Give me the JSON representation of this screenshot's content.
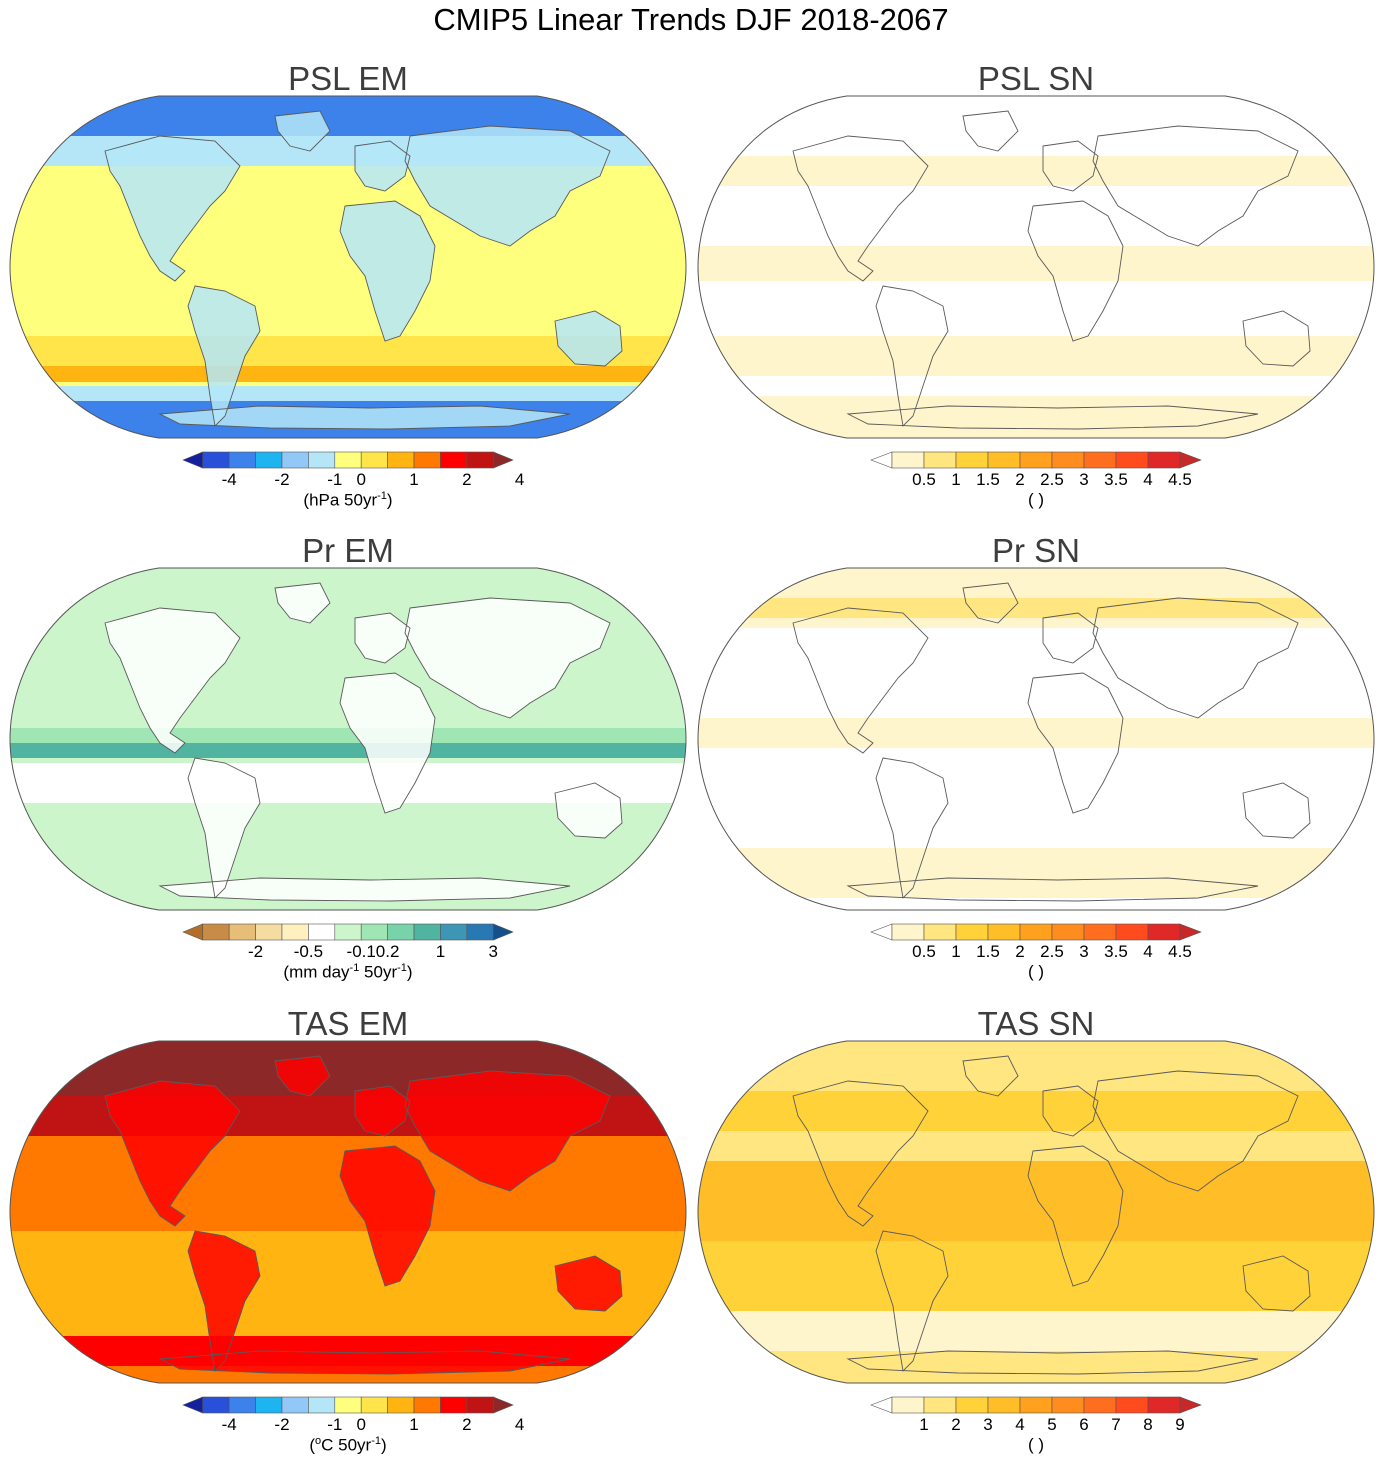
{
  "title": "CMIP5 Linear Trends DJF 2018-2067",
  "panels": [
    {
      "id": "psl-em",
      "title": "PSL EM",
      "palette": "div_psl",
      "colors": [
        "#14219e",
        "#2850d8",
        "#3c82ea",
        "#1eb4f0",
        "#92c8f8",
        "#b4e6f8",
        "#ffff7e",
        "#ffe54a",
        "#ffb412",
        "#ff7800",
        "#ff0000",
        "#c01414",
        "#8c2828"
      ],
      "tick_labels": [
        "-4",
        "-2",
        "-1",
        "0",
        "1",
        "2",
        "4"
      ],
      "tick_positions": [
        1,
        3,
        5,
        6,
        8,
        10,
        12
      ],
      "units_main": "(hPa 50yr",
      "units_sup": "-1",
      "units_end": ")",
      "dominant": [
        "#ffff7e",
        "#b4e6f8",
        "#ffe54a",
        "#3c82ea"
      ]
    },
    {
      "id": "psl-sn",
      "title": "PSL SN",
      "palette": "seq_sn",
      "colors": [
        "#ffffff",
        "#fff5cc",
        "#ffe680",
        "#ffd23a",
        "#ffbe28",
        "#ffa01e",
        "#ff8c1e",
        "#ff6e1e",
        "#ff4b1e",
        "#e02828",
        "#c82828"
      ],
      "tick_labels": [
        "0.5",
        "1",
        "1.5",
        "2",
        "2.5",
        "3",
        "3.5",
        "4",
        "4.5"
      ],
      "tick_positions": [
        1,
        2,
        3,
        4,
        5,
        6,
        7,
        8,
        9
      ],
      "units_main": "( )",
      "units_sup": "",
      "units_end": "",
      "dominant": [
        "#ffffff",
        "#fff5cc",
        "#ffe680"
      ]
    },
    {
      "id": "pr-em",
      "title": "Pr EM",
      "palette": "div_pr",
      "colors": [
        "#b46e28",
        "#c88c46",
        "#e6be78",
        "#f5dca0",
        "#fff0c0",
        "#ffffff",
        "#ccf5cc",
        "#a0e6b4",
        "#78d2aa",
        "#50b4a0",
        "#3c96b4",
        "#2878b4",
        "#14508c"
      ],
      "tick_labels": [
        "-2",
        "-0.5",
        "-0.1",
        "0.2",
        "1",
        "3"
      ],
      "tick_positions": [
        2,
        4,
        6,
        7,
        9,
        11
      ],
      "units_main": "(mm day",
      "units_sup": "-1",
      "units_mid": " 50yr",
      "units_sup2": "-1",
      "units_end": ")",
      "dominant": [
        "#ccf5cc",
        "#ffffff",
        "#a0e6b4",
        "#f5dca0"
      ]
    },
    {
      "id": "pr-sn",
      "title": "Pr SN",
      "palette": "seq_sn",
      "colors": [
        "#ffffff",
        "#fff5cc",
        "#ffe680",
        "#ffd23a",
        "#ffbe28",
        "#ffa01e",
        "#ff8c1e",
        "#ff6e1e",
        "#ff4b1e",
        "#e02828",
        "#c82828"
      ],
      "tick_labels": [
        "0.5",
        "1",
        "1.5",
        "2",
        "2.5",
        "3",
        "3.5",
        "4",
        "4.5"
      ],
      "tick_positions": [
        1,
        2,
        3,
        4,
        5,
        6,
        7,
        8,
        9
      ],
      "units_main": "( )",
      "units_sup": "",
      "units_end": "",
      "dominant": [
        "#ffffff",
        "#fff5cc",
        "#ffe680"
      ]
    },
    {
      "id": "tas-em",
      "title": "TAS EM",
      "palette": "div_tas",
      "colors": [
        "#14219e",
        "#2850d8",
        "#3c82ea",
        "#1eb4f0",
        "#92c8f8",
        "#b4e6f8",
        "#ffff7e",
        "#ffe54a",
        "#ffb412",
        "#ff7800",
        "#ff0000",
        "#c01414",
        "#8c2828"
      ],
      "tick_labels": [
        "-4",
        "-2",
        "-1",
        "0",
        "1",
        "2",
        "4"
      ],
      "tick_positions": [
        1,
        3,
        5,
        6,
        8,
        10,
        12
      ],
      "units_main": "(",
      "units_sup": "o",
      "units_end": "C 50yr",
      "units_sup2": "-1",
      "units_tail": ")",
      "dominant": [
        "#ff7800",
        "#ffb412",
        "#ff0000",
        "#c01414"
      ]
    },
    {
      "id": "tas-sn",
      "title": "TAS SN",
      "palette": "seq_sn",
      "colors": [
        "#ffffff",
        "#fff5cc",
        "#ffe680",
        "#ffd23a",
        "#ffbe28",
        "#ffa01e",
        "#ff8c1e",
        "#ff6e1e",
        "#ff4b1e",
        "#e02828",
        "#c82828"
      ],
      "tick_labels": [
        "1",
        "2",
        "3",
        "4",
        "5",
        "6",
        "7",
        "8",
        "9"
      ],
      "tick_positions": [
        1,
        2,
        3,
        4,
        5,
        6,
        7,
        8,
        9
      ],
      "units_main": "( )",
      "units_sup": "",
      "units_end": "",
      "dominant": [
        "#ffe680",
        "#ffd23a",
        "#fff5cc"
      ]
    }
  ]
}
